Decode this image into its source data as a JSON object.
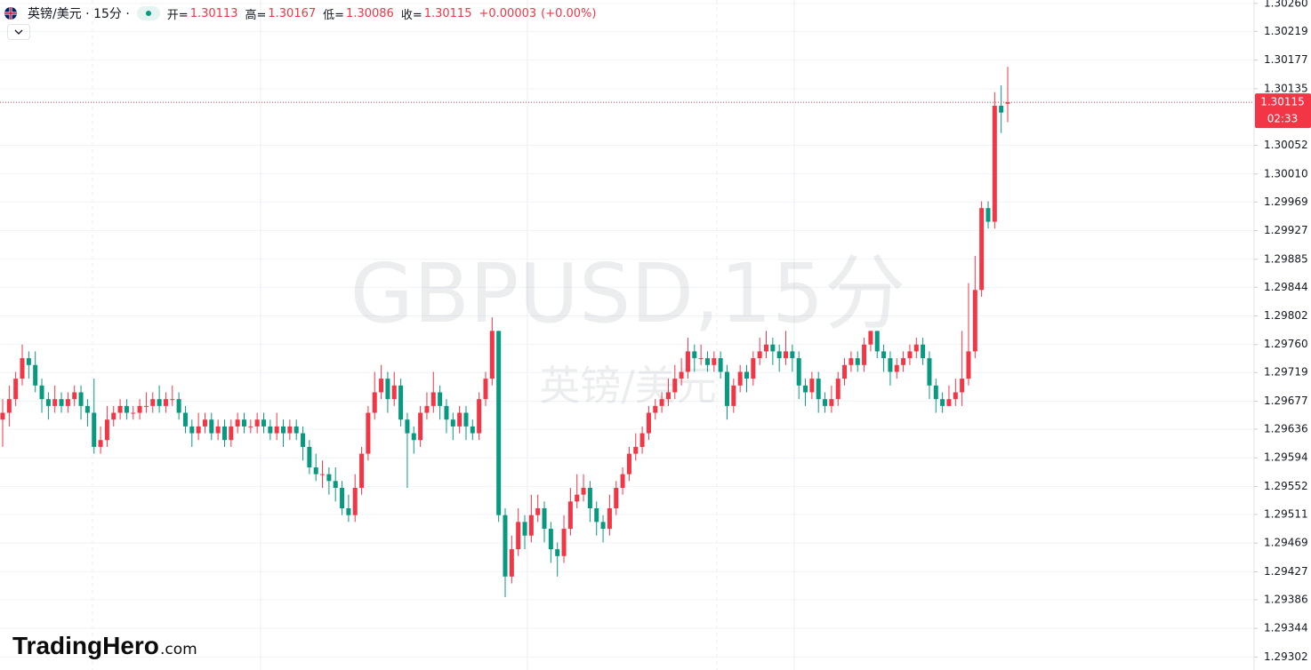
{
  "chart_data": {
    "type": "candlestick",
    "header": {
      "symbol": "英镑/美元 · 15分 ·",
      "open_label": "开=",
      "open": 1.30113,
      "high_label": "高=",
      "high": 1.30167,
      "low_label": "低=",
      "low": 1.30086,
      "close_label": "收=",
      "close": 1.30115,
      "change": "+0.00003",
      "change_pct": "(+0.00%)"
    },
    "watermark": "GBPUSD,15分",
    "watermark_sub": "英镑/美元",
    "logo": "TradingHero",
    "logo_suffix": ".com",
    "last_price": 1.30115,
    "countdown": "02:33",
    "up_color": "#f23645",
    "down_color": "#089981",
    "ylim": [
      1.29283,
      1.30265
    ],
    "yticks": [
      {
        "value": 1.3026,
        "label": "1.30260"
      },
      1.30219,
      1.30177,
      1.30135,
      1.30052,
      {
        "value": 1.3001,
        "label": "1.30010"
      },
      1.29969,
      1.29927,
      1.29885,
      1.29844,
      1.29802,
      {
        "value": 1.2976,
        "label": "1.29760"
      },
      1.29719,
      1.29677,
      1.29636,
      1.29594,
      1.29552,
      1.29511,
      1.29469,
      1.29427,
      1.29386,
      1.29344,
      1.29302
    ],
    "grid": true,
    "open": [
      1.2965,
      1.2966,
      1.2968,
      1.2971,
      1.2974,
      1.2973,
      1.297,
      1.2968,
      1.2967,
      1.2968,
      1.2967,
      1.2968,
      1.2969,
      1.2967,
      1.2966,
      1.2961,
      1.2962,
      1.2965,
      1.2966,
      1.2967,
      1.2966,
      1.2966,
      1.2967,
      1.2967,
      1.2968,
      1.2967,
      1.2968,
      1.2968,
      1.2966,
      1.2964,
      1.2963,
      1.2964,
      1.2965,
      1.2963,
      1.2964,
      1.2962,
      1.2964,
      1.2965,
      1.2964,
      1.2964,
      1.2965,
      1.2964,
      1.2963,
      1.2964,
      1.2963,
      1.2964,
      1.2963,
      1.2961,
      1.2958,
      1.2957,
      1.2957,
      1.2956,
      1.2955,
      1.2952,
      1.2951,
      1.2955,
      1.296,
      1.2966,
      1.2969,
      1.2971,
      1.2968,
      1.297,
      1.2965,
      1.2963,
      1.2962,
      1.2966,
      1.2967,
      1.2969,
      1.2967,
      1.2965,
      1.2964,
      1.2966,
      1.2964,
      1.2963,
      1.2968,
      1.2971,
      1.2978,
      1.2951,
      1.2942,
      1.2946,
      1.295,
      1.2948,
      1.2951,
      1.2952,
      1.2949,
      1.2946,
      1.2945,
      1.2949,
      1.2953,
      1.2954,
      1.2955,
      1.2952,
      1.295,
      1.2949,
      1.2952,
      1.2955,
      1.2957,
      1.296,
      1.2961,
      1.2963,
      1.2966,
      1.2967,
      1.2968,
      1.2969,
      1.2971,
      1.2972,
      1.2975,
      1.2974,
      1.2974,
      1.2973,
      1.2974,
      1.2972,
      1.2967,
      1.297,
      1.2972,
      1.2971,
      1.2974,
      1.2975,
      1.2976,
      1.2975,
      1.2974,
      1.2975,
      1.2974,
      1.297,
      1.2969,
      1.2971,
      1.2968,
      1.2967,
      1.2968,
      1.2971,
      1.2973,
      1.2974,
      1.2973,
      1.2976,
      1.2978,
      1.2975,
      1.2974,
      1.2972,
      1.2973,
      1.2974,
      1.2975,
      1.2976,
      1.2974,
      1.297,
      1.2968,
      1.2967,
      1.2968,
      1.2969,
      1.2971,
      1.2975,
      1.2984,
      1.2996,
      1.2994,
      1.3011,
      1.30113
    ],
    "high": [
      1.2968,
      1.297,
      1.2972,
      1.2976,
      1.2975,
      1.2975,
      1.2971,
      1.2969,
      1.297,
      1.2969,
      1.2969,
      1.297,
      1.297,
      1.2968,
      1.2971,
      1.2964,
      1.2967,
      1.2967,
      1.2968,
      1.2968,
      1.2967,
      1.2968,
      1.2969,
      1.2969,
      1.297,
      1.2969,
      1.297,
      1.2969,
      1.2967,
      1.2965,
      1.2966,
      1.2966,
      1.2966,
      1.2965,
      1.2965,
      1.2965,
      1.2966,
      1.2966,
      1.2965,
      1.2966,
      1.2966,
      1.2965,
      1.2966,
      1.2965,
      1.2965,
      1.2965,
      1.2964,
      1.2962,
      1.296,
      1.2959,
      1.2958,
      1.2958,
      1.2956,
      1.2954,
      1.2957,
      1.2961,
      1.2967,
      1.2972,
      1.2973,
      1.2972,
      1.2972,
      1.2971,
      1.2966,
      1.2964,
      1.2967,
      1.2969,
      1.2972,
      1.297,
      1.2968,
      1.2966,
      1.2967,
      1.2967,
      1.2965,
      1.2969,
      1.2972,
      1.298,
      1.2978,
      1.2952,
      1.2948,
      1.2952,
      1.2951,
      1.2954,
      1.2954,
      1.2953,
      1.295,
      1.2947,
      1.2951,
      1.2955,
      1.2957,
      1.2957,
      1.2956,
      1.2953,
      1.2951,
      1.2954,
      1.2956,
      1.2958,
      1.2961,
      1.2963,
      1.2964,
      1.2967,
      1.2968,
      1.2969,
      1.2971,
      1.2973,
      1.2974,
      1.2977,
      1.2976,
      1.2976,
      1.2975,
      1.2975,
      1.2975,
      1.2973,
      1.2971,
      1.2973,
      1.2973,
      1.2975,
      1.2977,
      1.2978,
      1.2977,
      1.2976,
      1.2978,
      1.2976,
      1.2975,
      1.2971,
      1.2972,
      1.2972,
      1.2969,
      1.297,
      1.2972,
      1.2974,
      1.2975,
      1.2975,
      1.2977,
      1.2978,
      1.2978,
      1.2976,
      1.2975,
      1.2974,
      1.2975,
      1.2976,
      1.2977,
      1.2977,
      1.2975,
      1.2971,
      1.2969,
      1.297,
      1.2971,
      1.2978,
      1.2985,
      1.2989,
      1.2997,
      1.2997,
      1.3013,
      1.3014,
      1.30167
    ],
    "low": [
      1.2961,
      1.2964,
      1.2967,
      1.297,
      1.2971,
      1.2969,
      1.2966,
      1.2965,
      1.2966,
      1.2966,
      1.2966,
      1.2967,
      1.2965,
      1.2964,
      1.296,
      1.296,
      1.2961,
      1.2964,
      1.2965,
      1.2965,
      1.2965,
      1.2965,
      1.2966,
      1.2966,
      1.2966,
      1.2966,
      1.2967,
      1.2965,
      1.2963,
      1.2961,
      1.2962,
      1.2963,
      1.2962,
      1.2962,
      1.2961,
      1.2961,
      1.2963,
      1.2963,
      1.2963,
      1.2963,
      1.2963,
      1.2962,
      1.2962,
      1.2961,
      1.2962,
      1.2962,
      1.2959,
      1.2957,
      1.2956,
      1.2955,
      1.2954,
      1.2953,
      1.2951,
      1.295,
      1.295,
      1.2954,
      1.2959,
      1.2965,
      1.2968,
      1.2966,
      1.2967,
      1.2964,
      1.2955,
      1.296,
      1.2961,
      1.2965,
      1.2966,
      1.2965,
      1.2963,
      1.2962,
      1.2963,
      1.2962,
      1.2962,
      1.2962,
      1.2967,
      1.297,
      1.295,
      1.2939,
      1.2941,
      1.2945,
      1.2946,
      1.2947,
      1.295,
      1.2947,
      1.2944,
      1.2942,
      1.2944,
      1.2948,
      1.2952,
      1.2953,
      1.295,
      1.2948,
      1.2947,
      1.2948,
      1.2951,
      1.2954,
      1.2956,
      1.2959,
      1.296,
      1.2962,
      1.2965,
      1.2966,
      1.2967,
      1.2968,
      1.297,
      1.2971,
      1.2972,
      1.2973,
      1.2972,
      1.2972,
      1.2971,
      1.2965,
      1.2966,
      1.2969,
      1.2969,
      1.297,
      1.2973,
      1.2974,
      1.2973,
      1.2972,
      1.2973,
      1.2972,
      1.2968,
      1.2967,
      1.2968,
      1.2966,
      1.2966,
      1.2966,
      1.2967,
      1.297,
      1.2972,
      1.2972,
      1.2972,
      1.2975,
      1.2974,
      1.2972,
      1.297,
      1.2971,
      1.2972,
      1.2973,
      1.2974,
      1.2973,
      1.2968,
      1.2966,
      1.2966,
      1.2967,
      1.2967,
      1.2967,
      1.297,
      1.2974,
      1.2983,
      1.2993,
      1.2993,
      1.3007,
      1.30086
    ],
    "close": [
      1.2966,
      1.2968,
      1.2971,
      1.2974,
      1.2973,
      1.297,
      1.2968,
      1.2967,
      1.2968,
      1.2967,
      1.2968,
      1.2969,
      1.2967,
      1.2966,
      1.2961,
      1.2962,
      1.2965,
      1.2966,
      1.2967,
      1.2966,
      1.2966,
      1.2967,
      1.2967,
      1.2968,
      1.2967,
      1.2968,
      1.2968,
      1.2966,
      1.2964,
      1.2963,
      1.2964,
      1.2965,
      1.2963,
      1.2964,
      1.2962,
      1.2964,
      1.2965,
      1.2964,
      1.2964,
      1.2965,
      1.2964,
      1.2963,
      1.2964,
      1.2963,
      1.2964,
      1.2963,
      1.2961,
      1.2958,
      1.2957,
      1.2957,
      1.2956,
      1.2955,
      1.2952,
      1.2951,
      1.2955,
      1.296,
      1.2966,
      1.2969,
      1.2971,
      1.2968,
      1.297,
      1.2965,
      1.2963,
      1.2962,
      1.2966,
      1.2967,
      1.2969,
      1.2967,
      1.2965,
      1.2964,
      1.2966,
      1.2964,
      1.2963,
      1.2968,
      1.2971,
      1.2978,
      1.2951,
      1.2942,
      1.2946,
      1.295,
      1.2948,
      1.2951,
      1.2952,
      1.2949,
      1.2946,
      1.2945,
      1.2949,
      1.2953,
      1.2954,
      1.2955,
      1.2952,
      1.295,
      1.2949,
      1.2952,
      1.2955,
      1.2957,
      1.296,
      1.2961,
      1.2963,
      1.2966,
      1.2967,
      1.2968,
      1.2969,
      1.2971,
      1.2972,
      1.2975,
      1.2974,
      1.2974,
      1.2973,
      1.2974,
      1.2972,
      1.2967,
      1.297,
      1.2972,
      1.2971,
      1.2974,
      1.2975,
      1.2976,
      1.2975,
      1.2974,
      1.2975,
      1.2974,
      1.297,
      1.2969,
      1.2971,
      1.2968,
      1.2967,
      1.2968,
      1.2971,
      1.2973,
      1.2974,
      1.2973,
      1.2976,
      1.2978,
      1.2975,
      1.2974,
      1.2972,
      1.2973,
      1.2974,
      1.2975,
      1.2976,
      1.2974,
      1.297,
      1.2968,
      1.2967,
      1.2968,
      1.2969,
      1.2971,
      1.2975,
      1.2984,
      1.2996,
      1.2994,
      1.3011,
      1.301,
      1.30115
    ]
  }
}
